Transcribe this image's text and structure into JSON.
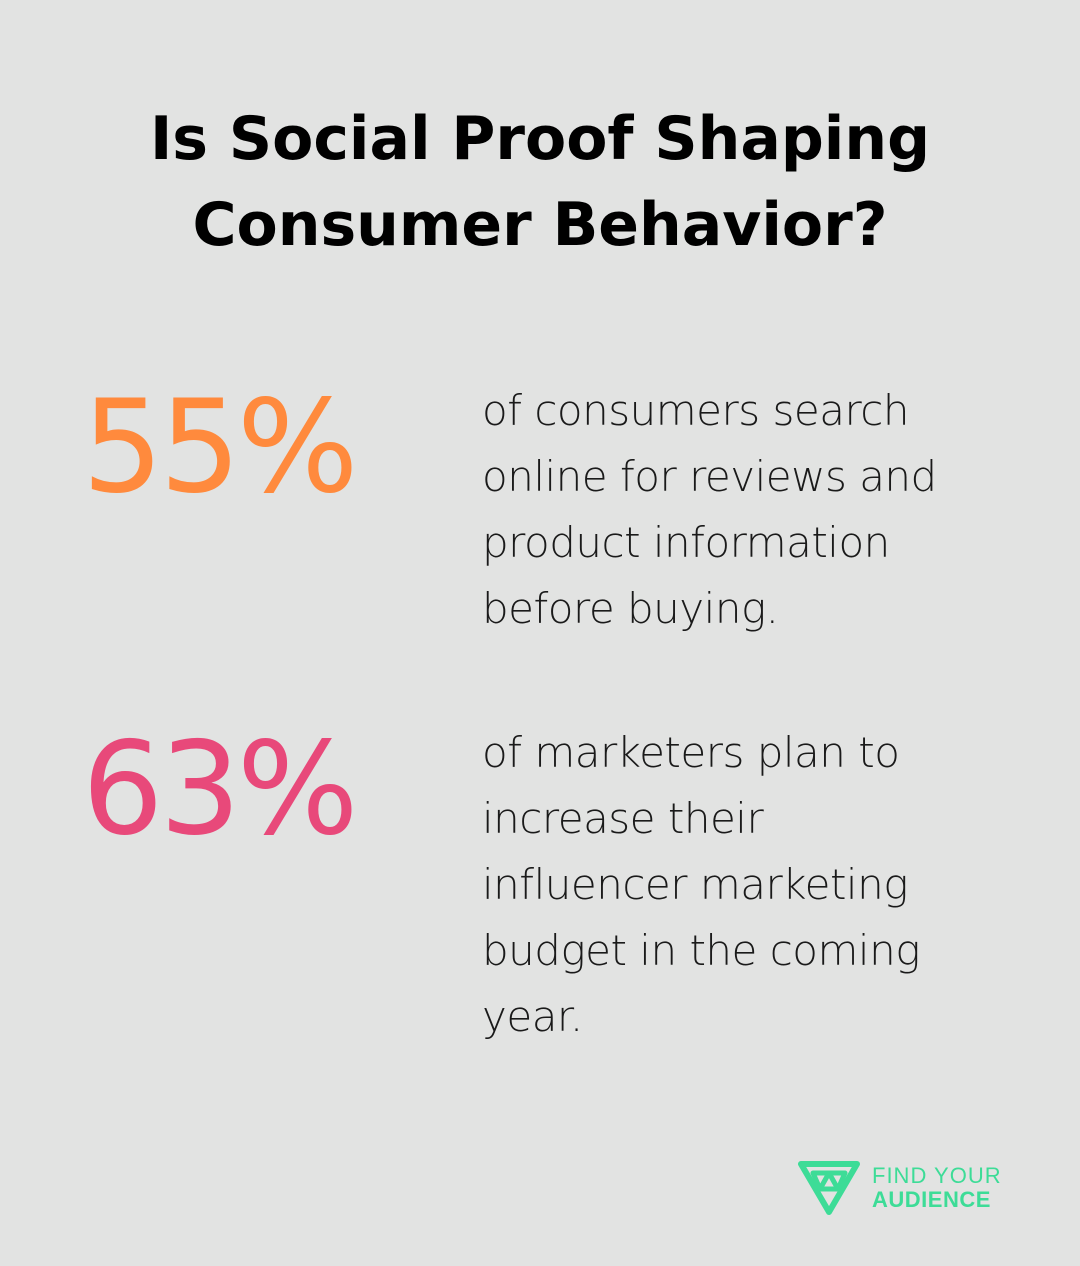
{
  "title_line_1": "Is Social Proof Shaping",
  "title_line_2": "Consumer Behavior?",
  "stats": [
    {
      "value": "55%",
      "lines": [
        "of consumers search",
        "online for reviews and",
        "product information",
        "before buying."
      ],
      "color": "#ff8a3d"
    },
    {
      "value": "63%",
      "lines": [
        "of marketers plan to",
        "increase their",
        "influencer marketing",
        "budget in the coming",
        "year."
      ],
      "color": "#e8497a"
    }
  ],
  "brand": {
    "line_1": "FIND YOUR",
    "line_2": "AUDIENCE",
    "logo_icon": "triangle-logo-icon",
    "color": "#3ddc97"
  },
  "background": "#e2e3e2"
}
